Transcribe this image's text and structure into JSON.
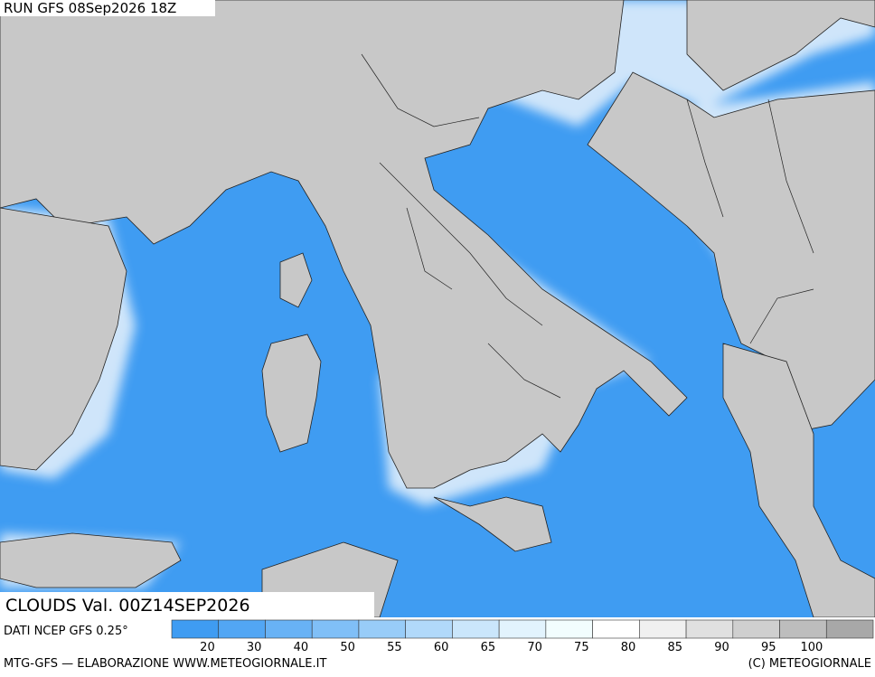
{
  "header": {
    "run": "RUN GFS 08Sep2026 18Z",
    "title": "CLOUDS Val. 00Z14SEP2026"
  },
  "footer": {
    "source": "DATI NCEP GFS 0.25°",
    "credits": "MTG-GFS — ELABORAZIONE WWW.METEOGIORNALE.IT",
    "copyright": "(C) METEOGIORNALE"
  },
  "legend": {
    "ticks": [
      20,
      30,
      40,
      50,
      55,
      60,
      65,
      70,
      75,
      80,
      85,
      90,
      95,
      100
    ],
    "colors": [
      "#3f9cf2",
      "#52a6f4",
      "#68b2f5",
      "#80bff7",
      "#98ccf8",
      "#b1d9fa",
      "#cae6fb",
      "#e2f3fd",
      "#f2fdfe",
      "#ffffff",
      "#f0f0f0",
      "#e0e0e0",
      "#cfcfcf",
      "#bdbdbd",
      "#a8a8a8"
    ]
  }
}
